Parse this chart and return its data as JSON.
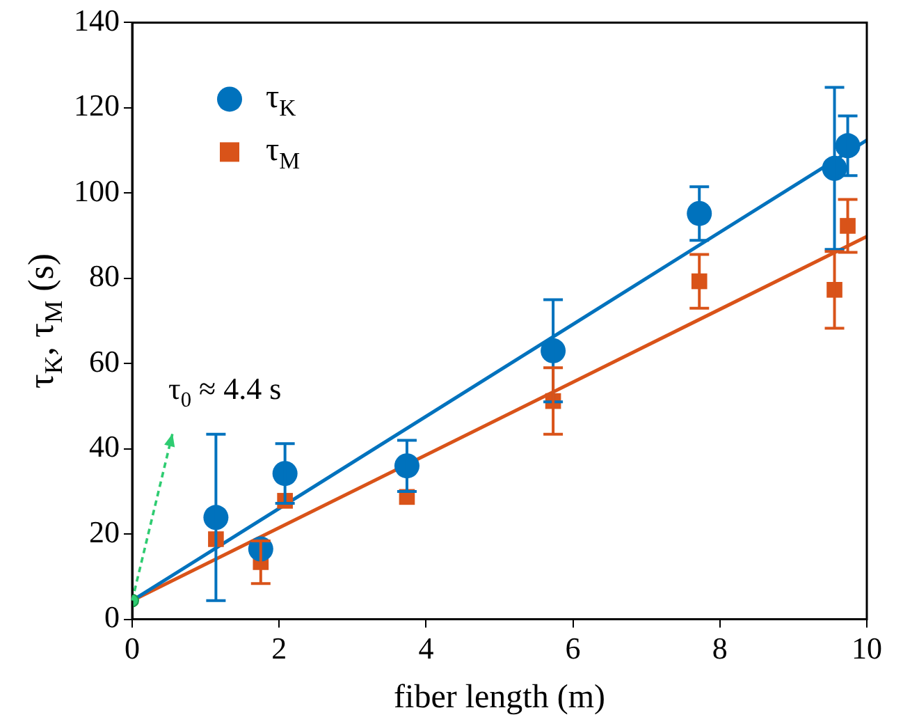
{
  "chart_data": {
    "type": "scatter",
    "xlabel": "fiber length (m)",
    "ylabel": "τ$_{K}$, τ$_{M}$ (s)",
    "xlim": [
      0,
      10
    ],
    "xticks": [
      0,
      2,
      4,
      6,
      8,
      10
    ],
    "ylim": [
      0,
      140
    ],
    "yticks": [
      0,
      20,
      40,
      60,
      80,
      100,
      120,
      140
    ],
    "grid": false,
    "legend": "top left",
    "series": [
      {
        "type": "line",
        "color": "#0072bd",
        "x": [
          0,
          10
        ],
        "values": [
          4.4,
          112.4
        ],
        "marker": "none"
      },
      {
        "type": "line",
        "color": "#d95319",
        "x": [
          0,
          10
        ],
        "values": [
          4.4,
          89.8
        ],
        "marker": "none"
      },
      {
        "name": "τ$_{K}$",
        "color": "#0072bd",
        "marker": "circle",
        "x": [
          1.14,
          1.75,
          2.08,
          3.74,
          5.73,
          7.72,
          9.56,
          9.74
        ],
        "values": [
          23.9,
          16.5,
          34.2,
          36,
          63,
          95.2,
          105.8,
          111.1
        ],
        "errors": [
          19.5,
          null,
          7,
          6,
          12,
          6.3,
          19,
          7
        ]
      },
      {
        "name": "τ$_{M}$",
        "color": "#d95319",
        "marker": "square",
        "x": [
          1.14,
          1.75,
          2.08,
          3.74,
          5.73,
          7.72,
          9.56,
          9.74
        ],
        "values": [
          18.8,
          13.4,
          27.8,
          28.7,
          51.2,
          79.3,
          77.3,
          92.3
        ],
        "errors": [
          null,
          5,
          null,
          null,
          7.8,
          6.3,
          9,
          6.2
        ]
      },
      {
        "color": "#2ecc71",
        "marker": "circle",
        "x": [
          0
        ],
        "values": [
          4.4
        ]
      }
    ],
    "annotations": [
      {
        "text": "τ$_{0}$ ≈ 4.4 s",
        "x": 0,
        "y": 4.4
      }
    ]
  }
}
